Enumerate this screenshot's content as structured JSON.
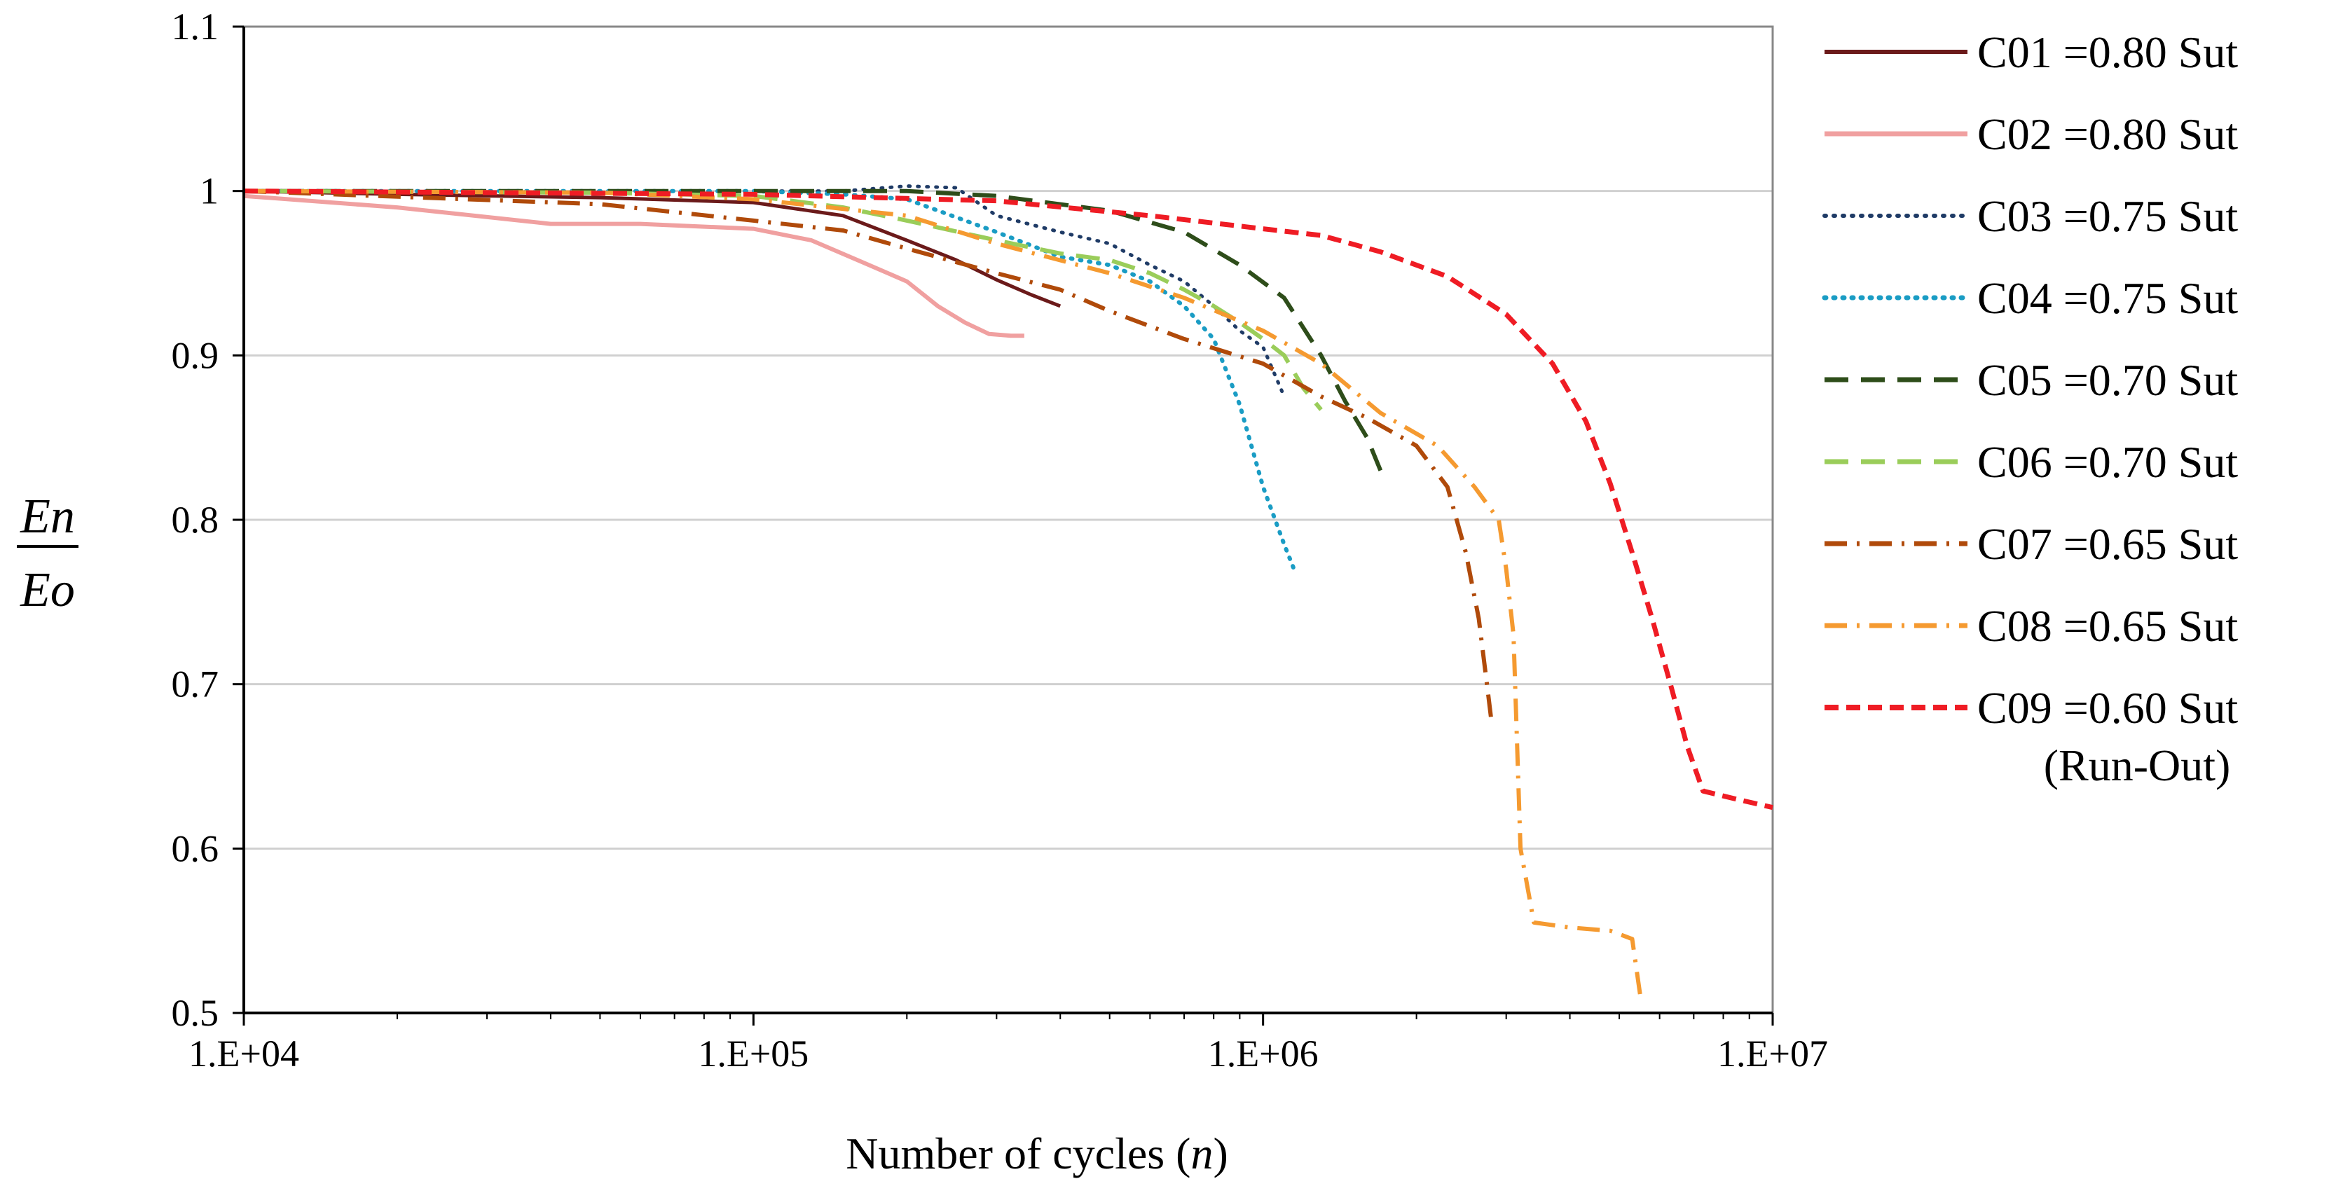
{
  "chart_data": {
    "type": "line",
    "title": "",
    "xlabel": "Number of cycles",
    "xlabel_symbol": "n",
    "ylabel_numerator": "En",
    "ylabel_denominator": "Eo",
    "xscale": "log",
    "xlim": [
      10000,
      10000000
    ],
    "ylim": [
      0.5,
      1.1
    ],
    "x_ticks": [
      {
        "value": 10000,
        "label": "1.E+04"
      },
      {
        "value": 100000,
        "label": "1.E+05"
      },
      {
        "value": 1000000,
        "label": "1.E+06"
      },
      {
        "value": 10000000,
        "label": "1.E+07"
      }
    ],
    "y_ticks": [
      {
        "value": 0.5,
        "label": "0.5"
      },
      {
        "value": 0.6,
        "label": "0.6"
      },
      {
        "value": 0.7,
        "label": "0.7"
      },
      {
        "value": 0.8,
        "label": "0.8"
      },
      {
        "value": 0.9,
        "label": "0.9"
      },
      {
        "value": 1.0,
        "label": "1"
      },
      {
        "value": 1.1,
        "label": "1.1"
      }
    ],
    "grid": "horizontal",
    "legend_position": "right",
    "series": [
      {
        "name": "C01 =0.80 Sut",
        "color": "#6b1a1a",
        "style": "solid",
        "width": 5,
        "x": [
          10000,
          20000,
          50000,
          100000,
          150000,
          200000,
          250000,
          300000,
          350000,
          400000
        ],
        "y": [
          1.0,
          0.998,
          0.996,
          0.993,
          0.985,
          0.97,
          0.958,
          0.946,
          0.937,
          0.93
        ]
      },
      {
        "name": "C02 =0.80 Sut",
        "color": "#f0a0a0",
        "style": "solid",
        "width": 6,
        "x": [
          10000,
          20000,
          40000,
          60000,
          100000,
          130000,
          160000,
          200000,
          230000,
          260000,
          290000,
          320000,
          340000
        ],
        "y": [
          0.997,
          0.99,
          0.98,
          0.98,
          0.977,
          0.97,
          0.958,
          0.945,
          0.93,
          0.92,
          0.913,
          0.912,
          0.912
        ]
      },
      {
        "name": "C03 =0.75 Sut",
        "color": "#1f3b66",
        "style": "dotted",
        "width": 5,
        "x": [
          10000,
          50000,
          100000,
          150000,
          200000,
          250000,
          300000,
          400000,
          500000,
          600000,
          700000,
          800000,
          900000,
          1000000,
          1100000
        ],
        "y": [
          1.0,
          1.0,
          1.0,
          1.0,
          1.003,
          1.002,
          0.985,
          0.975,
          0.968,
          0.955,
          0.945,
          0.93,
          0.915,
          0.905,
          0.875
        ]
      },
      {
        "name": "C04 =0.75 Sut",
        "color": "#1a9cc4",
        "style": "dotted",
        "width": 6,
        "x": [
          10000,
          50000,
          100000,
          150000,
          200000,
          300000,
          400000,
          500000,
          600000,
          700000,
          800000,
          900000,
          1000000,
          1100000,
          1150000
        ],
        "y": [
          1.0,
          1.0,
          1.0,
          0.998,
          0.995,
          0.975,
          0.96,
          0.955,
          0.945,
          0.93,
          0.91,
          0.87,
          0.82,
          0.785,
          0.77
        ]
      },
      {
        "name": "C05 =0.70 Sut",
        "color": "#2e4d1a",
        "style": "dashed",
        "width": 6,
        "x": [
          10000,
          50000,
          100000,
          200000,
          300000,
          500000,
          700000,
          900000,
          1100000,
          1300000,
          1450000,
          1600000,
          1700000
        ],
        "y": [
          1.0,
          1.0,
          1.0,
          1.0,
          0.997,
          0.988,
          0.975,
          0.955,
          0.935,
          0.9,
          0.872,
          0.85,
          0.83
        ]
      },
      {
        "name": "C06 =0.70 Sut",
        "color": "#9acd5a",
        "style": "dashed",
        "width": 6,
        "x": [
          10000,
          50000,
          100000,
          150000,
          200000,
          300000,
          400000,
          500000,
          600000,
          700000,
          800000,
          900000,
          1000000,
          1100000,
          1200000,
          1300000
        ],
        "y": [
          1.0,
          0.999,
          0.997,
          0.99,
          0.982,
          0.97,
          0.962,
          0.958,
          0.95,
          0.94,
          0.93,
          0.92,
          0.91,
          0.9,
          0.88,
          0.867
        ]
      },
      {
        "name": "C07 =0.65 Sut",
        "color": "#b04a0a",
        "style": "dashdot",
        "width": 6,
        "x": [
          10000,
          50000,
          100000,
          150000,
          200000,
          300000,
          400000,
          500000,
          700000,
          1000000,
          1300000,
          1600000,
          2000000,
          2300000,
          2500000,
          2650000,
          2750000,
          2800000
        ],
        "y": [
          1.0,
          0.992,
          0.982,
          0.976,
          0.965,
          0.95,
          0.94,
          0.927,
          0.91,
          0.895,
          0.875,
          0.862,
          0.845,
          0.82,
          0.78,
          0.74,
          0.7,
          0.68
        ]
      },
      {
        "name": "C08 =0.65 Sut",
        "color": "#f59a30",
        "style": "dashdot",
        "width": 6,
        "x": [
          10000,
          50000,
          100000,
          200000,
          300000,
          500000,
          700000,
          1000000,
          1300000,
          1700000,
          2200000,
          2600000,
          2900000,
          3000000,
          3100000,
          3200000,
          3400000,
          4000000,
          4800000,
          5300000,
          5500000
        ],
        "y": [
          1.0,
          0.999,
          0.995,
          0.985,
          0.968,
          0.95,
          0.935,
          0.915,
          0.895,
          0.865,
          0.845,
          0.82,
          0.8,
          0.77,
          0.73,
          0.6,
          0.555,
          0.552,
          0.55,
          0.545,
          0.51
        ]
      },
      {
        "name": "C09 =0.60 Sut",
        "note": "(Run-Out)",
        "color": "#ef1c24",
        "style": "shortdash",
        "width": 7,
        "x": [
          10000,
          100000,
          300000,
          600000,
          1000000,
          1300000,
          1700000,
          2300000,
          3000000,
          3700000,
          4300000,
          4800000,
          5300000,
          5800000,
          6300000,
          6800000,
          7300000,
          8500000,
          10000000
        ],
        "y": [
          1.0,
          0.998,
          0.994,
          0.985,
          0.977,
          0.973,
          0.963,
          0.948,
          0.925,
          0.895,
          0.86,
          0.822,
          0.78,
          0.74,
          0.7,
          0.662,
          0.635,
          0.63,
          0.625
        ]
      }
    ]
  }
}
